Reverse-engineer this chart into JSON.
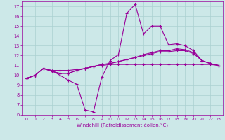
{
  "x": [
    0,
    1,
    2,
    3,
    4,
    5,
    6,
    7,
    8,
    9,
    10,
    11,
    12,
    13,
    14,
    15,
    16,
    17,
    18,
    19,
    20,
    21,
    22,
    23
  ],
  "line1": [
    9.7,
    10.0,
    10.7,
    10.5,
    10.0,
    9.5,
    9.1,
    6.5,
    6.3,
    9.8,
    11.5,
    12.1,
    16.3,
    17.2,
    14.2,
    15.0,
    15.0,
    13.1,
    13.2,
    13.0,
    12.5,
    11.5,
    11.2,
    11.0
  ],
  "line2": [
    9.7,
    10.0,
    10.7,
    10.4,
    10.2,
    10.2,
    10.5,
    10.7,
    10.9,
    11.1,
    11.2,
    11.4,
    11.6,
    11.8,
    12.1,
    12.3,
    12.5,
    12.5,
    12.7,
    12.6,
    12.3,
    11.5,
    11.2,
    11.0
  ],
  "line3": [
    9.7,
    10.0,
    10.7,
    10.4,
    10.2,
    10.2,
    10.5,
    10.7,
    10.9,
    11.1,
    11.2,
    11.4,
    11.6,
    11.8,
    12.0,
    12.2,
    12.4,
    12.4,
    12.5,
    12.5,
    12.2,
    11.5,
    11.2,
    11.0
  ],
  "line4": [
    9.7,
    10.0,
    10.7,
    10.5,
    10.5,
    10.5,
    10.6,
    10.7,
    10.9,
    11.0,
    11.1,
    11.1,
    11.1,
    11.1,
    11.1,
    11.1,
    11.1,
    11.1,
    11.1,
    11.1,
    11.1,
    11.1,
    11.1,
    11.0
  ],
  "color": "#990099",
  "bg_color": "#cce8e8",
  "grid_color": "#aad0d0",
  "xlim": [
    -0.5,
    23.5
  ],
  "ylim": [
    6,
    17.5
  ],
  "yticks": [
    6,
    7,
    8,
    9,
    10,
    11,
    12,
    13,
    14,
    15,
    16,
    17
  ],
  "xticks": [
    0,
    1,
    2,
    3,
    4,
    5,
    6,
    7,
    8,
    9,
    10,
    11,
    12,
    13,
    14,
    15,
    16,
    17,
    18,
    19,
    20,
    21,
    22,
    23
  ],
  "xlabel": "Windchill (Refroidissement éolien,°C)",
  "marker": "+",
  "tick_fontsize": 4.5,
  "xlabel_fontsize": 5.0,
  "linewidth": 0.8,
  "markersize": 2.5
}
